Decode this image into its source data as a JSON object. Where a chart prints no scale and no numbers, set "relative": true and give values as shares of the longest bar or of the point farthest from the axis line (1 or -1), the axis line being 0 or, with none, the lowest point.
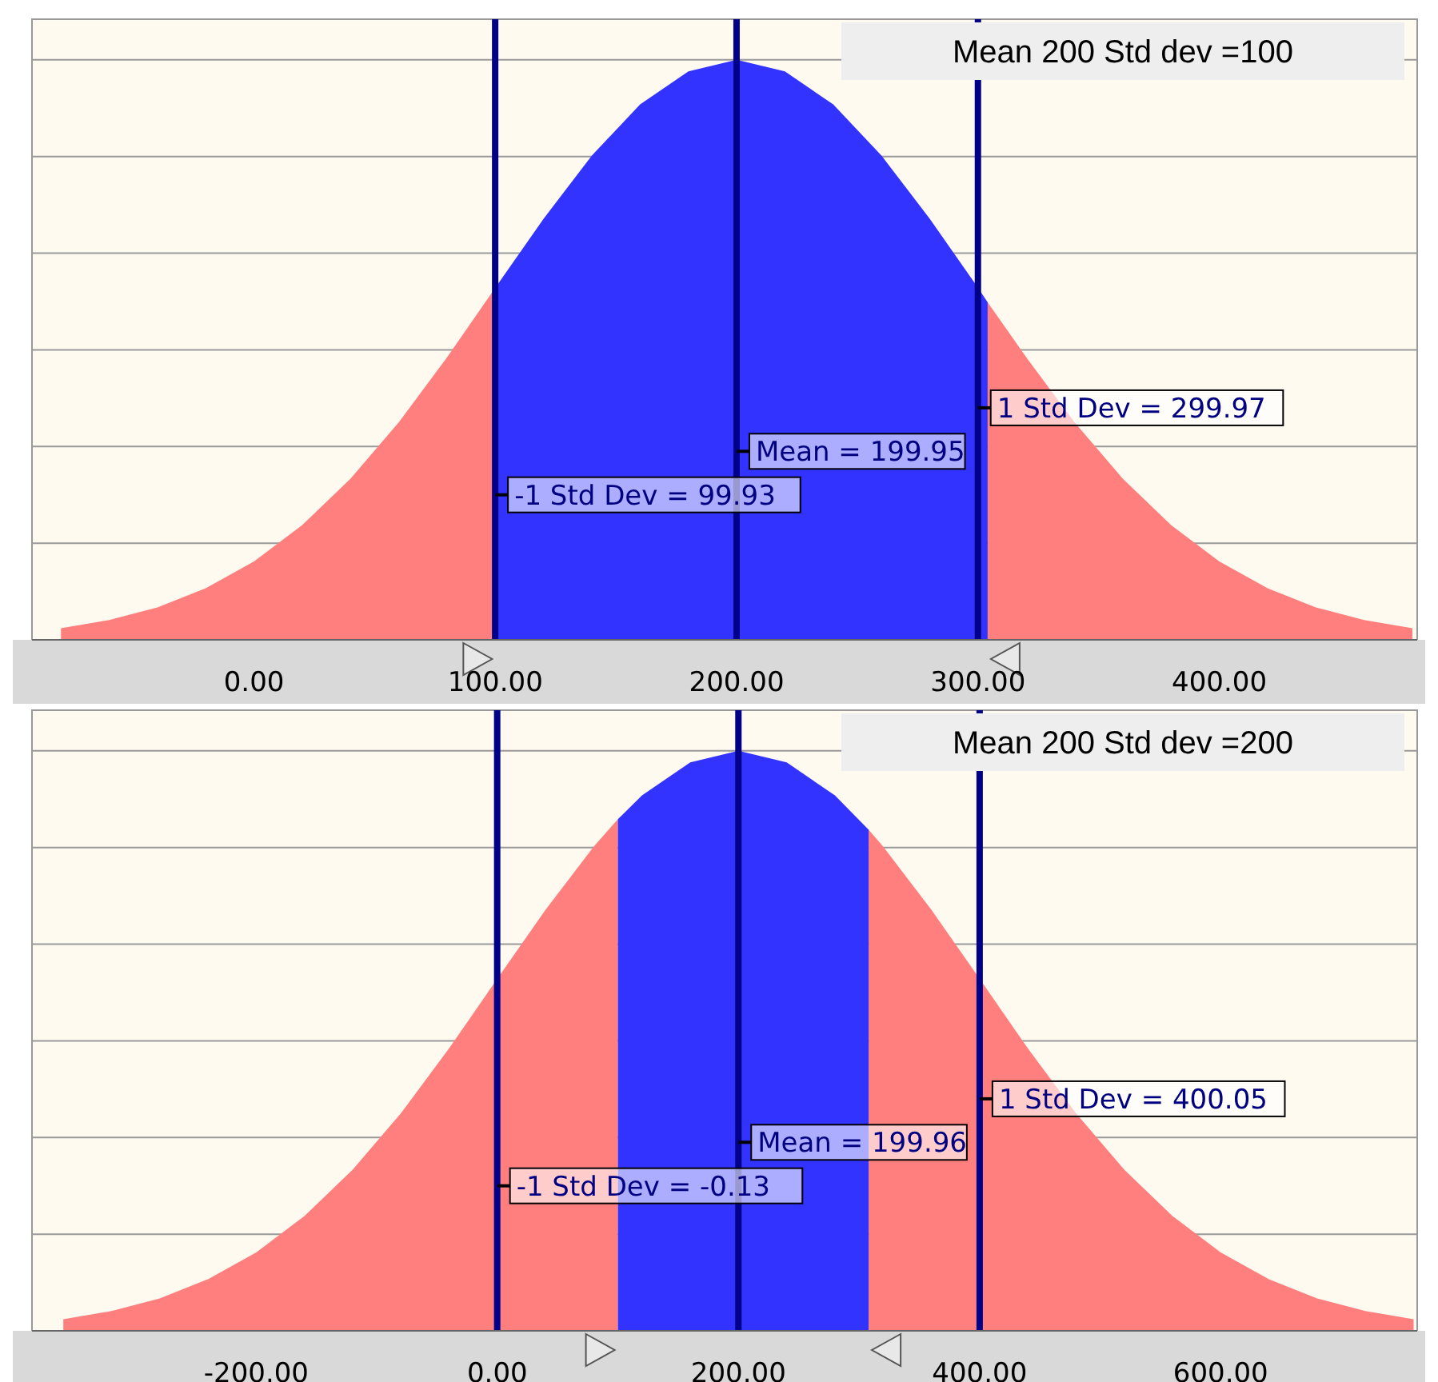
{
  "chart_data": [
    {
      "type": "area",
      "relative": true,
      "title": "Mean 200 Std dev =100",
      "grid": "y",
      "x": [
        -80,
        -60,
        -40,
        -20,
        0,
        20,
        40,
        60,
        80,
        100,
        120,
        140,
        160,
        180,
        200,
        220,
        240,
        260,
        280,
        300,
        304,
        320,
        340,
        360,
        380,
        400,
        420,
        440,
        460,
        480
      ],
      "xlim": [
        -92,
        482
      ],
      "xticks": [
        {
          "value": 0,
          "label": "0.00"
        },
        {
          "value": 100,
          "label": "100.00"
        },
        {
          "value": 200,
          "label": "200.00"
        },
        {
          "value": 300,
          "label": "300.00"
        },
        {
          "value": 400,
          "label": "400.00"
        }
      ],
      "series": [
        {
          "color": "#ff7f7f",
          "values": [
            0.02,
            0.034,
            0.056,
            0.089,
            0.135,
            0.198,
            0.278,
            0.375,
            0.487,
            0.607,
            null,
            null,
            null,
            null,
            null,
            null,
            null,
            null,
            null,
            null,
            0.582,
            0.487,
            0.375,
            0.278,
            0.198,
            0.135,
            0.089,
            0.056,
            0.034,
            0.02
          ]
        },
        {
          "color": "#3333ff",
          "values": [
            null,
            null,
            null,
            null,
            null,
            null,
            null,
            null,
            null,
            0.607,
            0.726,
            0.835,
            0.923,
            0.98,
            1,
            0.98,
            0.923,
            0.835,
            0.726,
            0.607,
            0.582,
            null,
            null,
            null,
            null,
            null,
            null,
            null,
            null,
            null
          ]
        }
      ],
      "ref_lines": [
        {
          "axis": "x",
          "value": 99.93,
          "label": "-1 Std Dev = 99.93",
          "color": "#000088"
        },
        {
          "axis": "x",
          "value": 199.95,
          "label": "Mean = 199.95",
          "color": "#000088"
        },
        {
          "axis": "x",
          "value": 299.97,
          "label": "1 Std Dev = 299.97",
          "color": "#000088"
        }
      ]
    },
    {
      "type": "area",
      "relative": true,
      "title": "Mean 200 Std dev =200",
      "grid": "y",
      "x": [
        -360,
        -320,
        -280,
        -240,
        -200,
        -160,
        -120,
        -80,
        -40,
        0,
        40,
        80,
        100,
        120,
        160,
        200,
        240,
        280,
        308,
        320,
        360,
        400,
        440,
        480,
        520,
        560,
        600,
        640,
        680,
        720,
        760
      ],
      "xlim": [
        -386,
        763
      ],
      "xticks": [
        {
          "value": -200,
          "label": "-200.00"
        },
        {
          "value": 0,
          "label": "0.00"
        },
        {
          "value": 200,
          "label": "200.00"
        },
        {
          "value": 400,
          "label": "400.00"
        },
        {
          "value": 600,
          "label": "600.00"
        }
      ],
      "series": [
        {
          "color": "#ff7f7f",
          "values": [
            0.02,
            0.034,
            0.056,
            0.089,
            0.135,
            0.198,
            0.278,
            0.375,
            0.487,
            0.607,
            0.726,
            0.835,
            0.882,
            null,
            null,
            null,
            null,
            null,
            0.864,
            0.835,
            0.726,
            0.607,
            0.487,
            0.375,
            0.278,
            0.198,
            0.135,
            0.089,
            0.056,
            0.034,
            0.02
          ]
        },
        {
          "color": "#3333ff",
          "values": [
            null,
            null,
            null,
            null,
            null,
            null,
            null,
            null,
            null,
            null,
            null,
            null,
            0.882,
            0.923,
            0.98,
            1,
            0.98,
            0.923,
            0.864,
            null,
            null,
            null,
            null,
            null,
            null,
            null,
            null,
            null,
            null,
            null,
            null
          ]
        }
      ],
      "ref_lines": [
        {
          "axis": "x",
          "value": -0.13,
          "label": "-1 Std Dev = -0.13",
          "color": "#000088"
        },
        {
          "axis": "x",
          "value": 199.96,
          "label": "Mean = 199.96",
          "color": "#000088"
        },
        {
          "axis": "x",
          "value": 400.05,
          "label": "1 Std Dev = 400.05",
          "color": "#000088"
        }
      ]
    }
  ]
}
